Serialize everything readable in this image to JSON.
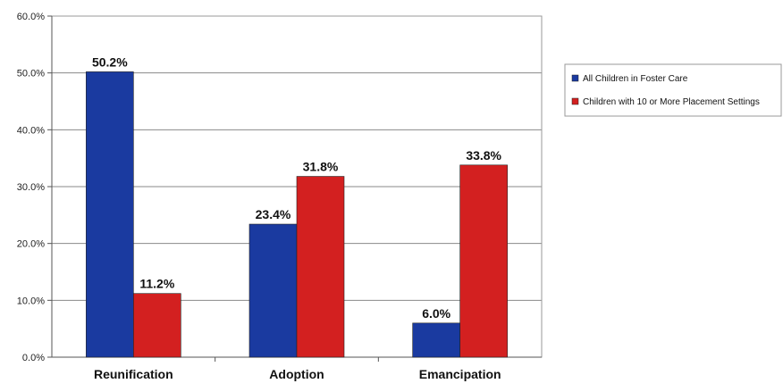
{
  "chart_data": {
    "type": "bar",
    "title": "",
    "xlabel": "",
    "ylabel": "",
    "categories": [
      "Reunification",
      "Adoption",
      "Emancipation"
    ],
    "series": [
      {
        "name": "All Children in Foster Care",
        "color": "#1a3aa0",
        "values": [
          50.2,
          23.4,
          6.0
        ],
        "labels": [
          "50.2%",
          "23.4%",
          "6.0%"
        ]
      },
      {
        "name": "Children with 10 or More Placement Settings",
        "color": "#d32020",
        "values": [
          11.2,
          31.8,
          33.8
        ],
        "labels": [
          "11.2%",
          "31.8%",
          "33.8%"
        ]
      }
    ],
    "ylim": [
      0,
      60
    ],
    "yticks": [
      0,
      10,
      20,
      30,
      40,
      50,
      60
    ],
    "ytick_labels": [
      "0.0%",
      "10.0%",
      "20.0%",
      "30.0%",
      "40.0%",
      "50.0%",
      "60.0%"
    ],
    "grid": true,
    "legend_position": "right"
  }
}
